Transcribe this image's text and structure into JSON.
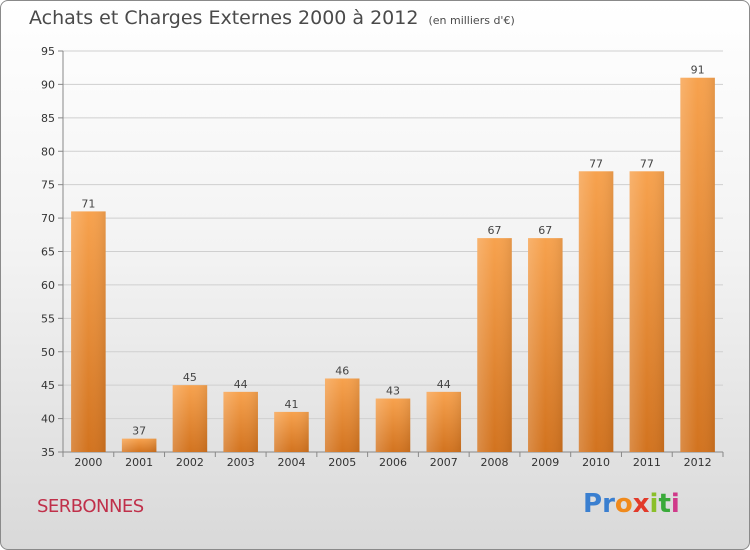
{
  "header": {
    "title": "Achats et Charges Externes 2000 à 2012",
    "subtitle": "(en milliers d'€)"
  },
  "footer": {
    "commune": "SERBONNES",
    "logo": "Proxiti"
  },
  "colors": {
    "bar_top": "#f7a24e",
    "bar_bottom": "#d2731f",
    "commune_text": "#c0304a",
    "logo_letters": [
      "#3a7fd0",
      "#3a7fd0",
      "#f08a1c",
      "#e23a2a",
      "#8bbf2a",
      "#3aaa3a",
      "#d03a8a"
    ]
  },
  "chart_data": {
    "type": "bar",
    "title": "Achats et Charges Externes 2000 à 2012",
    "subtitle": "(en milliers d'€)",
    "categories": [
      "2000",
      "2001",
      "2002",
      "2003",
      "2004",
      "2005",
      "2006",
      "2007",
      "2008",
      "2009",
      "2010",
      "2011",
      "2012"
    ],
    "values": [
      71,
      37,
      45,
      44,
      41,
      46,
      43,
      44,
      67,
      67,
      77,
      77,
      91
    ],
    "ylim": [
      35,
      95
    ],
    "yticks": [
      35,
      40,
      45,
      50,
      55,
      60,
      65,
      70,
      75,
      80,
      85,
      90,
      95
    ],
    "grid": true,
    "xlabel": "",
    "ylabel": ""
  }
}
